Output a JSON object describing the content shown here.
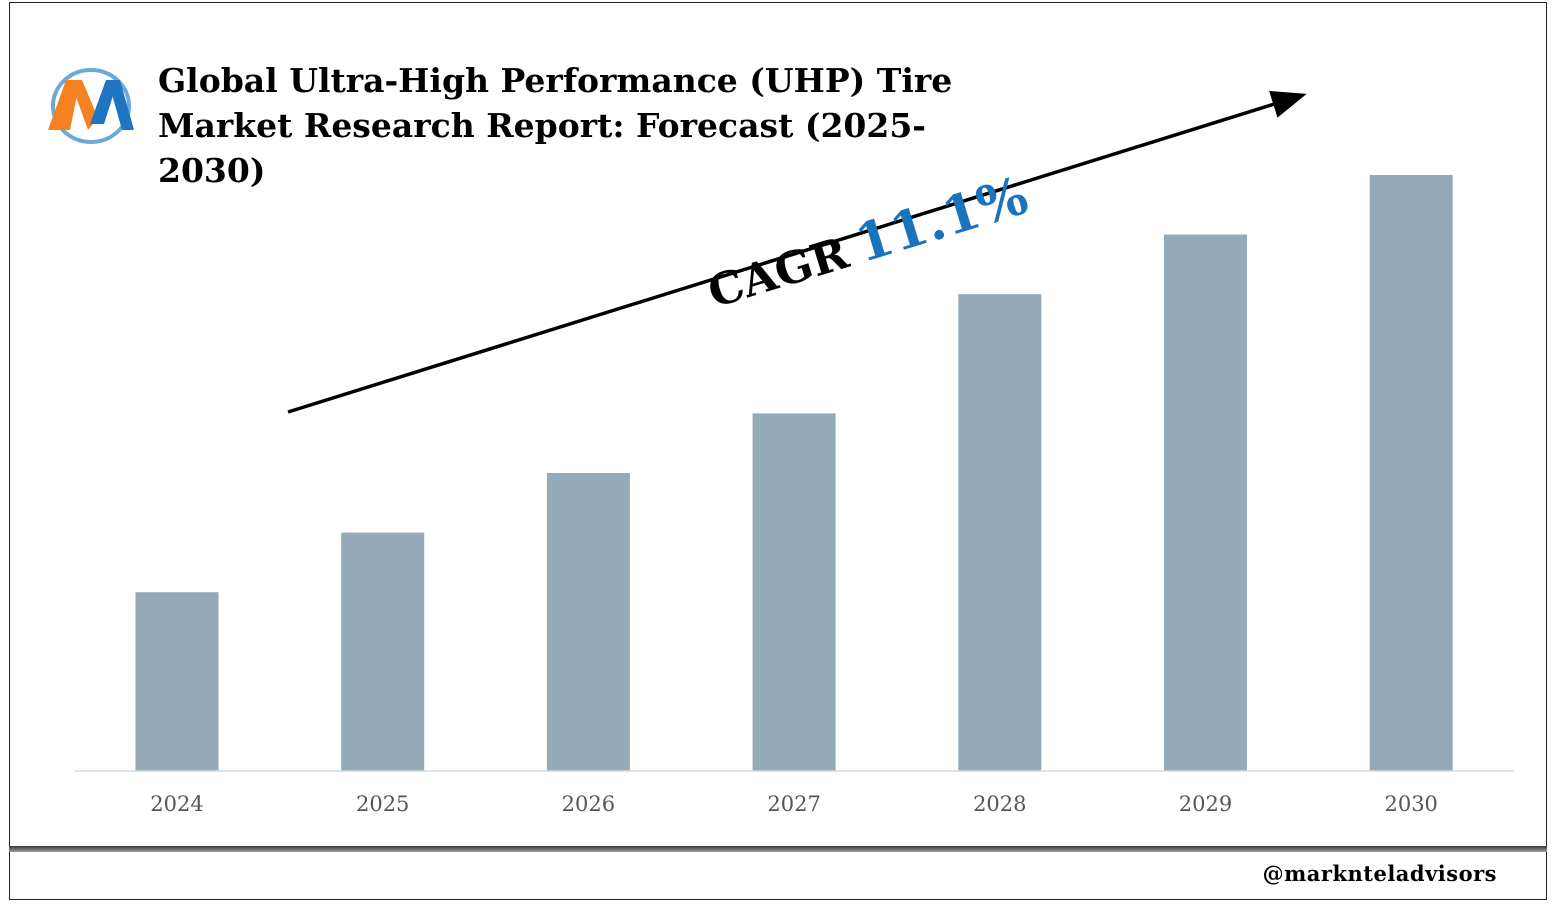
{
  "title": "Global Ultra-High Performance (UHP) Tire Market Research Report: Forecast (2025-2030)",
  "logo": {
    "icon": "marknteladvisors-m-logo",
    "colors": {
      "orange": "#f58220",
      "blue": "#1f75c1",
      "ring": "#6aa9d8"
    }
  },
  "annotation": {
    "label": "CAGR",
    "value": "11.1%"
  },
  "footer": {
    "handle": "@marknteladvisors"
  },
  "colors": {
    "bar": "#94aab9",
    "cagr": "#1a73bd",
    "axis": "#d9d9d9",
    "tick_text": "#555555"
  },
  "chart_data": {
    "type": "bar",
    "title": "Global Ultra-High Performance (UHP) Tire Market Research Report: Forecast (2025-2030)",
    "categories": [
      "2024",
      "2025",
      "2026",
      "2027",
      "2028",
      "2029",
      "2030"
    ],
    "values": [
      30,
      40,
      50,
      60,
      80,
      90,
      100
    ],
    "value_scale": "relative (no value axis shown)",
    "xlabel": "",
    "ylabel": "",
    "ylim": [
      0,
      100
    ],
    "grid": false,
    "legend": "none"
  }
}
